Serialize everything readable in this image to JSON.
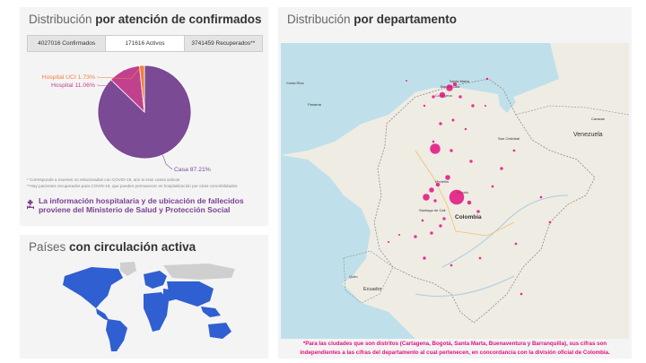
{
  "distribution": {
    "title_plain": "Distribución ",
    "title_bold": "por atención de confirmados",
    "tabs": [
      {
        "label": "4027016 Confirmados",
        "active": false
      },
      {
        "label": "171616 Activos",
        "active": true
      },
      {
        "label": "3741459 Recuperados**",
        "active": false
      }
    ],
    "footnote1": "* Corresponde a muertes no relacionadas con COVID-19, aún si eran casos activos",
    "footnote2": "**Hay pacientes recuperados para COVID-19, que pueden permanecer en hospitalización por otras comorbilidades",
    "info_icon": "hospital-bed-icon",
    "info_text": "La información hospitalaria y de ubicación de fallecidos proviene del Ministerio de Salud y Protección Social"
  },
  "chart_data": {
    "type": "pie",
    "slices": [
      {
        "label": "Casa 87.21%",
        "value": 87.21,
        "color": "#7a4a94"
      },
      {
        "label": "Hospital 11.06%",
        "value": 11.06,
        "color": "#c2418d"
      },
      {
        "label": "Hospital UCI 1.73%",
        "value": 1.73,
        "color": "#f07f3b"
      }
    ]
  },
  "paises": {
    "title_plain": "Países ",
    "title_bold": "con circulación activa",
    "active_color": "#2f5fd0",
    "inactive_color": "#cfcfcf"
  },
  "departamento": {
    "title_plain": "Distribución ",
    "title_bold": "por departamento",
    "labels": {
      "venezuela": "Venezuela",
      "colombia": "Colombia",
      "ecuador": "Ecuador",
      "bogota": "Bogotá",
      "medellin": "Medellín",
      "santiago_de_cali": "Santiago de Cali",
      "barranquilla": "Barranquilla",
      "cartagena": "Cartagena",
      "santa_marta": "Santa Marta",
      "san_cristobal": "San Cristóbal",
      "panama": "Panamá",
      "costa_rica": "Costa Rica",
      "quito": "Quito",
      "caracas": "Caracas"
    },
    "marker_color": "#e0127d",
    "note": "*Para las ciudades que son distritos (Cartagena, Bogotá, Santa Marta, Buenaventura y Barranquilla), sus cifras son independientes a las cifras del departamento al cual pertenecen, en concordancia con la división oficial de Colombia."
  }
}
